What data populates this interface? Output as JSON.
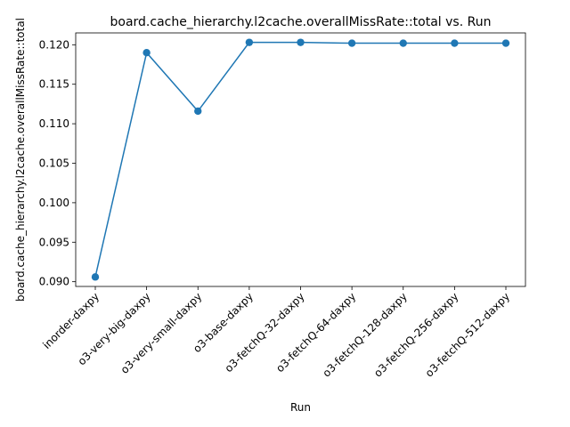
{
  "chart_data": {
    "type": "line",
    "title": "board.cache_hierarchy.l2cache.overallMissRate::total vs. Run",
    "xlabel": "Run",
    "ylabel": "board.cache_hierarchy.l2cache.overallMissRate::total",
    "categories": [
      "inorder-daxpy",
      "o3-very-big-daxpy",
      "o3-very-small-daxpy",
      "o3-base-daxpy",
      "o3-fetchQ-32-daxpy",
      "o3-fetchQ-64-daxpy",
      "o3-fetchQ-128-daxpy",
      "o3-fetchQ-256-daxpy",
      "o3-fetchQ-512-daxpy"
    ],
    "series": [
      {
        "values": [
          0.0906,
          0.119,
          0.1116,
          0.1203,
          0.1203,
          0.1202,
          0.1202,
          0.1202,
          0.1202
        ],
        "color": "#1f77b4",
        "marker": "circle"
      }
    ],
    "yticks": [
      "0.090",
      "0.095",
      "0.100",
      "0.105",
      "0.110",
      "0.115",
      "0.120"
    ],
    "ylim": [
      0.0894,
      0.1215
    ],
    "grid": false,
    "legend": "none"
  }
}
